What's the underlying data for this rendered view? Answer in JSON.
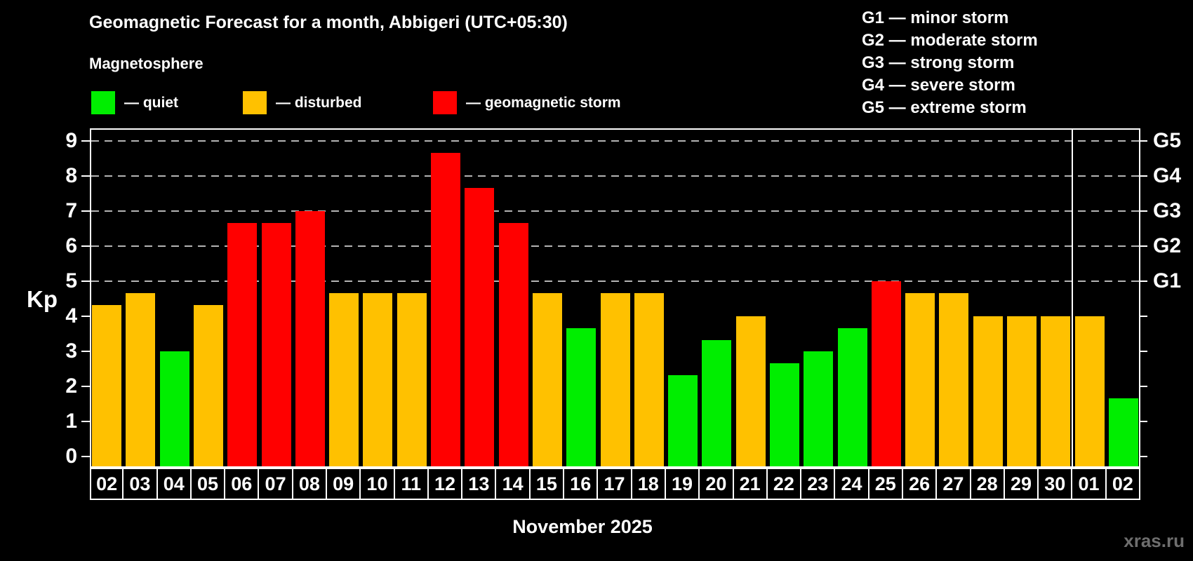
{
  "header": {
    "title": "Geomagnetic Forecast for a month, Abbigeri (UTC+05:30)",
    "subtitle": "Magnetosphere"
  },
  "legend": {
    "items": [
      {
        "status": "quiet",
        "label": "— quiet"
      },
      {
        "status": "disturbed",
        "label": "— disturbed"
      },
      {
        "status": "storm",
        "label": "— geomagnetic storm"
      }
    ]
  },
  "g_legend": {
    "items": [
      "G1 — minor storm",
      "G2 — moderate storm",
      "G3 — strong storm",
      "G4 — severe storm",
      "G5 — extreme storm"
    ]
  },
  "colors": {
    "quiet": "#00ee00",
    "disturbed": "#ffc100",
    "storm": "#ff0000",
    "gridline": "#b4b4b4",
    "frame": "#ffffff",
    "background": "#000000",
    "watermark_text": "#6e6e6e"
  },
  "axes": {
    "y_label": "Kp",
    "y_ticks": [
      "0",
      "1",
      "2",
      "3",
      "4",
      "5",
      "6",
      "7",
      "8",
      "9"
    ],
    "right_labels": [
      {
        "kp": 5,
        "label": "G1"
      },
      {
        "kp": 6,
        "label": "G2"
      },
      {
        "kp": 7,
        "label": "G3"
      },
      {
        "kp": 8,
        "label": "G4"
      },
      {
        "kp": 9,
        "label": "G5"
      }
    ],
    "x_label": "November 2025"
  },
  "watermark": "xras.ru",
  "chart_data": {
    "type": "bar",
    "title": "Geomagnetic Forecast for a month, Abbigeri (UTC+05:30)",
    "subtitle": "Magnetosphere",
    "xlabel": "November 2025",
    "ylabel": "Kp",
    "ylim": [
      0,
      9
    ],
    "gridlines_kp": [
      5,
      6,
      7,
      8,
      9
    ],
    "legend_position": "top",
    "categories": [
      "02",
      "03",
      "04",
      "05",
      "06",
      "07",
      "08",
      "09",
      "10",
      "11",
      "12",
      "13",
      "14",
      "15",
      "16",
      "17",
      "18",
      "19",
      "20",
      "21",
      "22",
      "23",
      "24",
      "25",
      "26",
      "27",
      "28",
      "29",
      "30",
      "01",
      "02"
    ],
    "values": [
      4.33,
      4.67,
      3,
      4.33,
      6.67,
      6.67,
      7,
      4.67,
      4.67,
      4.67,
      8.67,
      7.67,
      6.67,
      4.67,
      3.67,
      4.67,
      4.67,
      2.33,
      3.33,
      4,
      2.67,
      3,
      3.67,
      5,
      4.67,
      4.67,
      4,
      4,
      4,
      4,
      1.67
    ],
    "statuses": [
      "disturbed",
      "disturbed",
      "quiet",
      "disturbed",
      "storm",
      "storm",
      "storm",
      "disturbed",
      "disturbed",
      "disturbed",
      "storm",
      "storm",
      "storm",
      "disturbed",
      "quiet",
      "disturbed",
      "disturbed",
      "quiet",
      "quiet",
      "disturbed",
      "quiet",
      "quiet",
      "quiet",
      "storm",
      "disturbed",
      "disturbed",
      "disturbed",
      "disturbed",
      "disturbed",
      "disturbed",
      "quiet"
    ],
    "month_separator_after_index": 28
  }
}
